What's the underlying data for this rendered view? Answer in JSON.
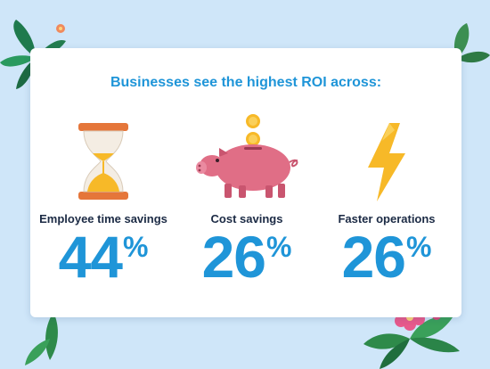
{
  "headline": "Businesses see the highest ROI across:",
  "stats": [
    {
      "label": "Employee time savings",
      "value": "44",
      "unit": "%",
      "icon": "hourglass-icon"
    },
    {
      "label": "Cost savings",
      "value": "26",
      "unit": "%",
      "icon": "piggy-bank-icon"
    },
    {
      "label": "Faster operations",
      "value": "26",
      "unit": "%",
      "icon": "lightning-bolt-icon"
    }
  ],
  "colors": {
    "background": "#cfe6f9",
    "accent": "#1f95d8",
    "text": "#1b2a44",
    "pig": "#e06e86",
    "coin": "#f7b928",
    "bolt": "#f7b928"
  }
}
